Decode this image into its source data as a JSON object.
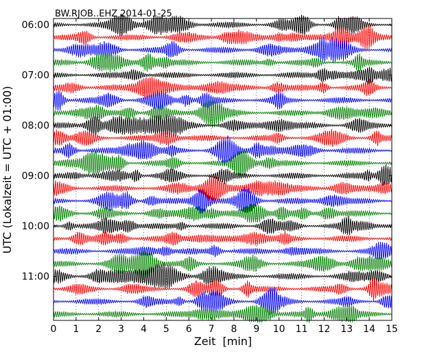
{
  "chart_data": {
    "type": "line",
    "subtype": "dayplot",
    "title": "BW.RJOB..EHZ 2014-01-25",
    "xlabel": "Zeit  [min]",
    "ylabel": "UTC (Lokalzeit = UTC + 01:00)",
    "xlim": [
      0,
      15
    ],
    "x_ticks": [
      "0",
      "1",
      "2",
      "3",
      "4",
      "5",
      "6",
      "7",
      "8",
      "9",
      "10",
      "11",
      "12",
      "13",
      "14",
      "15"
    ],
    "y_tick_labels": [
      "06:00",
      "07:00",
      "08:00",
      "09:00",
      "10:00",
      "11:00"
    ],
    "rows_per_hour": 4,
    "row_count": 24,
    "minutes_per_row": 15,
    "grid": "vertical dotted lines at each minute",
    "trace_colors": [
      "#000000",
      "#ff0000",
      "#0000ff",
      "#008000"
    ]
  }
}
